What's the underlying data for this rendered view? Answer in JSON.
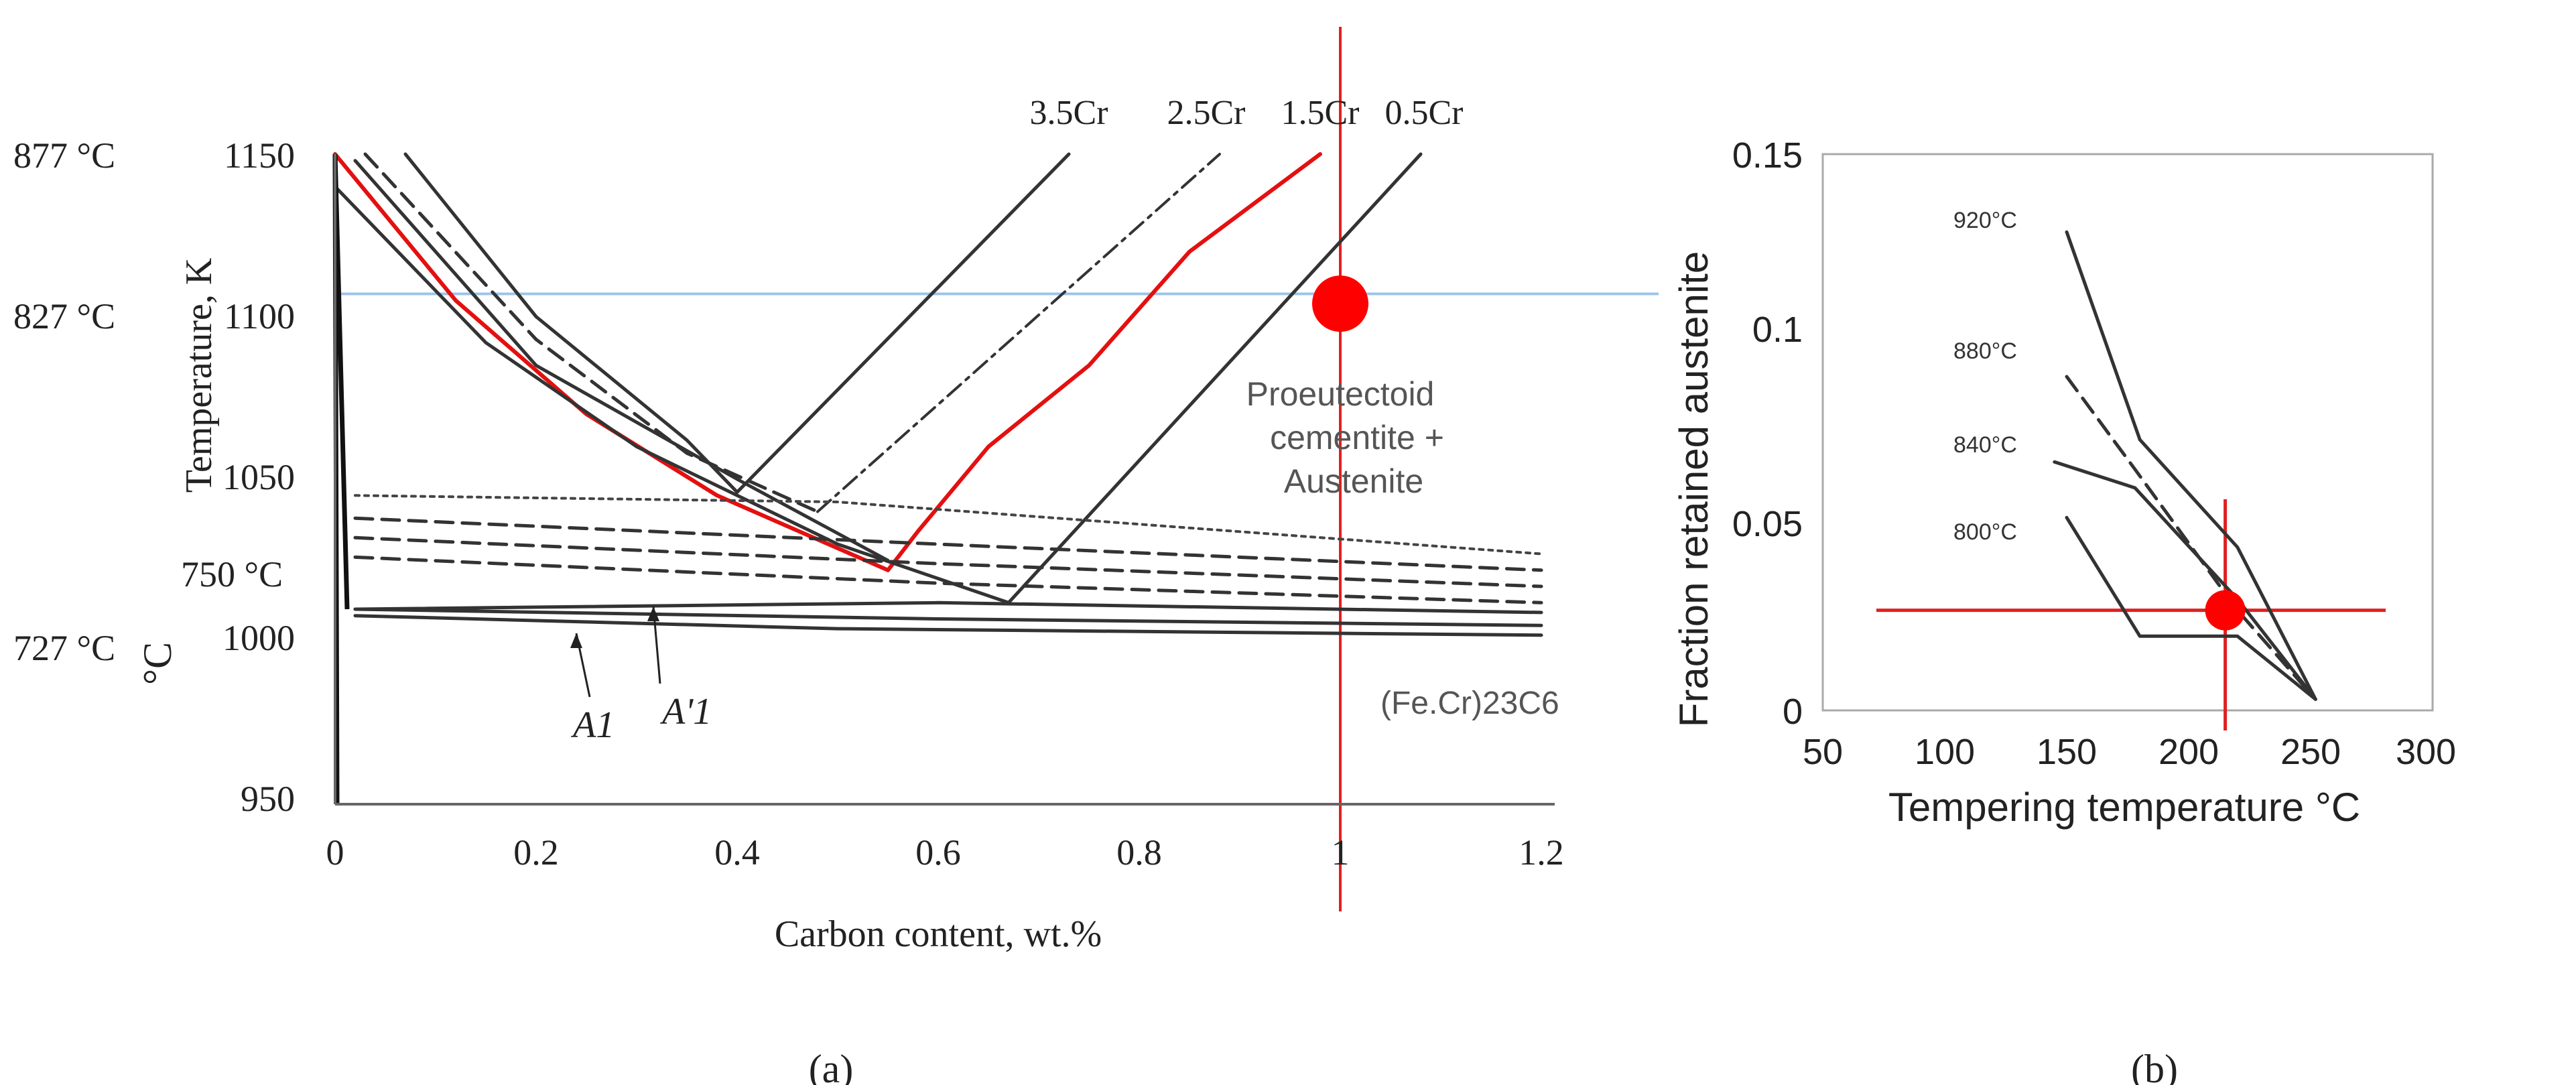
{
  "chart_data": [
    {
      "panel": "a",
      "type": "line",
      "panel_label": "(a)",
      "xlabel": "Carbon content, wt.%",
      "ylabel": "Temperature, K",
      "xlim": [
        0,
        1.2
      ],
      "ylim": [
        950,
        1150
      ],
      "x_ticks": [
        0,
        0.2,
        0.4,
        0.6,
        0.8,
        1,
        1.2
      ],
      "x_tick_labels": [
        "0",
        "0.2",
        "0.4",
        "0.6",
        "0.8",
        "1",
        "1.2"
      ],
      "y_ticks": [
        950,
        1000,
        1050,
        1100,
        1150
      ],
      "y_tick_labels": [
        "950",
        "1000",
        "1050",
        "1100",
        "1150"
      ],
      "celsius_annotations": [
        {
          "text": "877 °C",
          "y": 1150
        },
        {
          "text": "827 °C",
          "y": 1100
        },
        {
          "text": "750 °C",
          "y": 1023
        },
        {
          "text": "727 °C",
          "y": 1000
        }
      ],
      "celsius_axis_symbol": "°C",
      "legend": [
        "3.5Cr",
        "2.5Cr",
        "1.5Cr",
        "0.5Cr"
      ],
      "series": [
        {
          "name": "Acm 3.5Cr",
          "style": "solid",
          "x": [
            0.4,
            0.73
          ],
          "y": [
            1046,
            1150
          ]
        },
        {
          "name": "Acm 2.5Cr",
          "style": "dashdot",
          "x": [
            0.48,
            0.88
          ],
          "y": [
            1040,
            1150
          ]
        },
        {
          "name": "Acm 1.5Cr",
          "style": "red",
          "x": [
            0.55,
            0.58,
            0.65,
            0.75,
            0.85,
            0.98
          ],
          "y": [
            1022,
            1034,
            1060,
            1085,
            1120,
            1150
          ]
        },
        {
          "name": "Acm 0.5Cr",
          "style": "solid",
          "x": [
            0.67,
            1.08
          ],
          "y": [
            1012,
            1150
          ]
        },
        {
          "name": "A3 3.5Cr",
          "style": "solid",
          "x": [
            0.07,
            0.2,
            0.35,
            0.4
          ],
          "y": [
            1150,
            1100,
            1062,
            1046
          ]
        },
        {
          "name": "A3 2.5Cr",
          "style": "dashed",
          "x": [
            0.03,
            0.2,
            0.35,
            0.48
          ],
          "y": [
            1150,
            1093,
            1058,
            1040
          ]
        },
        {
          "name": "A3 1.5Cr",
          "style": "red",
          "x": [
            0.0,
            0.12,
            0.25,
            0.38,
            0.55
          ],
          "y": [
            1150,
            1105,
            1070,
            1045,
            1022
          ]
        },
        {
          "name": "A3 0.5Cr",
          "style": "solid",
          "x": [
            0.0,
            0.15,
            0.3,
            0.5,
            0.67
          ],
          "y": [
            1140,
            1092,
            1060,
            1030,
            1012
          ]
        },
        {
          "name": "A3 extra",
          "style": "solid",
          "x": [
            0.02,
            0.2,
            0.4,
            0.55
          ],
          "y": [
            1148,
            1085,
            1050,
            1025
          ]
        },
        {
          "name": "A1 band 1",
          "style": "dotted",
          "x": [
            0.02,
            0.5,
            1.2
          ],
          "y": [
            1045,
            1043,
            1027
          ]
        },
        {
          "name": "A1 band 2",
          "style": "dashed",
          "x": [
            0.02,
            0.6,
            1.2
          ],
          "y": [
            1038,
            1030,
            1022
          ]
        },
        {
          "name": "A1 band 3",
          "style": "dashed",
          "x": [
            0.02,
            0.6,
            1.2
          ],
          "y": [
            1032,
            1024,
            1017
          ]
        },
        {
          "name": "A1 band 4",
          "style": "dashed",
          "x": [
            0.02,
            0.6,
            1.2
          ],
          "y": [
            1026,
            1018,
            1012
          ]
        },
        {
          "name": "A'1 solid",
          "style": "solid",
          "x": [
            0.02,
            0.6,
            1.2
          ],
          "y": [
            1010,
            1007,
            1005
          ]
        },
        {
          "name": "A1 solid",
          "style": "solid",
          "x": [
            0.02,
            0.5,
            1.2
          ],
          "y": [
            1008,
            1004,
            1002
          ]
        },
        {
          "name": "upper solid",
          "style": "solid",
          "x": [
            0.02,
            0.6,
            1.2
          ],
          "y": [
            1010,
            1012,
            1009
          ]
        }
      ],
      "region_labels": [
        {
          "lines": [
            "Proeutectoid",
            "cementite +",
            "Austenite"
          ]
        },
        {
          "lines": [
            "(Fe.Cr)23C6"
          ]
        }
      ],
      "arrow_labels": [
        "A1",
        "A'1"
      ],
      "reference_lines": [
        {
          "orientation": "horizontal",
          "y": 1107,
          "color": "#9cc4ea"
        },
        {
          "orientation": "vertical",
          "x": 1.0,
          "color": "#e02020"
        }
      ],
      "marker": {
        "x": 1.0,
        "y": 1104,
        "color": "#ff0000"
      }
    },
    {
      "panel": "b",
      "type": "line",
      "panel_label": "(b)",
      "xlabel": "Tempering temperature °C",
      "ylabel": "Fraction retained austenite",
      "xlim": [
        50,
        300
      ],
      "ylim": [
        0,
        0.15
      ],
      "x_ticks": [
        50,
        100,
        150,
        200,
        250,
        300
      ],
      "x_tick_labels": [
        "50",
        "100",
        "150",
        "200",
        "250",
        "300"
      ],
      "y_ticks": [
        0,
        0.05,
        0.1,
        0.15
      ],
      "y_tick_labels": [
        "0",
        "0.05",
        "0.1",
        "0.15"
      ],
      "series": [
        {
          "name": "920°C",
          "style": "solid",
          "x": [
            150,
            180,
            220,
            252
          ],
          "y": [
            0.129,
            0.073,
            0.044,
            0.003
          ]
        },
        {
          "name": "880°C",
          "style": "dashed",
          "x": [
            150,
            178,
            220,
            252
          ],
          "y": [
            0.09,
            0.065,
            0.027,
            0.003
          ]
        },
        {
          "name": "840°C",
          "style": "solid",
          "x": [
            145,
            178,
            220,
            252
          ],
          "y": [
            0.067,
            0.06,
            0.03,
            0.003
          ]
        },
        {
          "name": "800°C",
          "style": "solid",
          "x": [
            150,
            180,
            220,
            252
          ],
          "y": [
            0.052,
            0.02,
            0.02,
            0.003
          ]
        }
      ],
      "reference_lines": [
        {
          "orientation": "horizontal",
          "y": 0.027,
          "color": "#e02020"
        },
        {
          "orientation": "vertical",
          "x": 215,
          "color": "#e02020"
        }
      ],
      "marker": {
        "x": 215,
        "y": 0.027,
        "color": "#ff0000"
      }
    }
  ]
}
